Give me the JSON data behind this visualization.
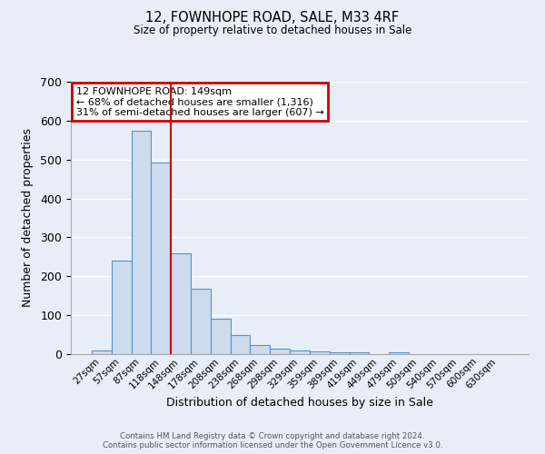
{
  "title": "12, FOWNHOPE ROAD, SALE, M33 4RF",
  "subtitle": "Size of property relative to detached houses in Sale",
  "xlabel": "Distribution of detached houses by size in Sale",
  "ylabel": "Number of detached properties",
  "bar_labels": [
    "27sqm",
    "57sqm",
    "87sqm",
    "118sqm",
    "148sqm",
    "178sqm",
    "208sqm",
    "238sqm",
    "268sqm",
    "298sqm",
    "329sqm",
    "359sqm",
    "389sqm",
    "419sqm",
    "449sqm",
    "479sqm",
    "509sqm",
    "540sqm",
    "570sqm",
    "600sqm",
    "630sqm"
  ],
  "bar_heights": [
    10,
    240,
    575,
    492,
    258,
    168,
    90,
    48,
    24,
    13,
    10,
    7,
    5,
    4,
    0,
    5,
    0,
    0,
    0,
    0,
    0
  ],
  "bar_color": "#ccdcee",
  "bar_edge_color": "#5b8fc9",
  "ylim": [
    0,
    700
  ],
  "yticks": [
    0,
    100,
    200,
    300,
    400,
    500,
    600,
    700
  ],
  "annotation_title": "12 FOWNHOPE ROAD: 149sqm",
  "annotation_line1": "← 68% of detached houses are smaller (1,316)",
  "annotation_line2": "31% of semi-detached houses are larger (607) →",
  "annotation_box_color": "#ffffff",
  "annotation_box_edge_color": "#cc0000",
  "vline_x": 3.5,
  "vline_color": "#cc0000",
  "background_color": "#e8eef7",
  "grid_color": "#ffffff",
  "footer_line1": "Contains HM Land Registry data © Crown copyright and database right 2024.",
  "footer_line2": "Contains public sector information licensed under the Open Government Licence v3.0."
}
